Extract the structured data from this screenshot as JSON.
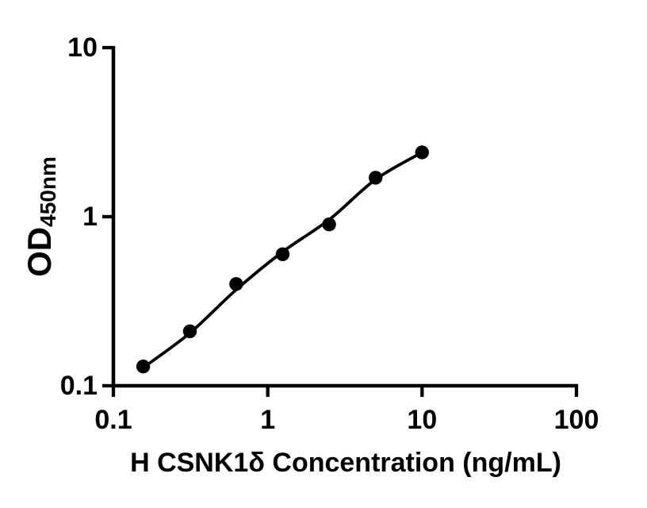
{
  "figure": {
    "background": "#ffffff"
  },
  "chart_data": {
    "type": "scatter",
    "title": "",
    "xlabel": "H CSNK1δ Concentration (ng/mL)",
    "ylabel": "OD450nm",
    "ylabel_main": "OD",
    "ylabel_sub": "450nm",
    "x_scale": "log10",
    "y_scale": "log10",
    "xlim": [
      0.1,
      100
    ],
    "ylim": [
      0.1,
      10
    ],
    "x_ticks": [
      0.1,
      1,
      10,
      100
    ],
    "x_tick_labels": [
      "0.1",
      "1",
      "10",
      "100"
    ],
    "y_ticks": [
      0.1,
      1,
      10
    ],
    "y_tick_labels": [
      "0.1",
      "1",
      "10"
    ],
    "grid": false,
    "legend": "none",
    "series": [
      {
        "marker": "filled-circle",
        "color": "#000000",
        "points": [
          {
            "x": 0.156,
            "y": 0.13
          },
          {
            "x": 0.313,
            "y": 0.21
          },
          {
            "x": 0.625,
            "y": 0.4
          },
          {
            "x": 1.25,
            "y": 0.6
          },
          {
            "x": 2.5,
            "y": 0.9
          },
          {
            "x": 5,
            "y": 1.7
          },
          {
            "x": 10,
            "y": 2.4
          }
        ]
      }
    ],
    "fit_curve": {
      "color": "#000000",
      "points": [
        {
          "x": 0.156,
          "y": 0.128
        },
        {
          "x": 0.313,
          "y": 0.205
        },
        {
          "x": 0.625,
          "y": 0.37
        },
        {
          "x": 1.25,
          "y": 0.62
        },
        {
          "x": 2.5,
          "y": 0.96
        },
        {
          "x": 5,
          "y": 1.66
        },
        {
          "x": 10,
          "y": 2.4
        }
      ]
    },
    "colors": {
      "axis": "#000000",
      "text": "#000000",
      "marker": "#000000",
      "line": "#000000",
      "background": "#ffffff"
    }
  }
}
